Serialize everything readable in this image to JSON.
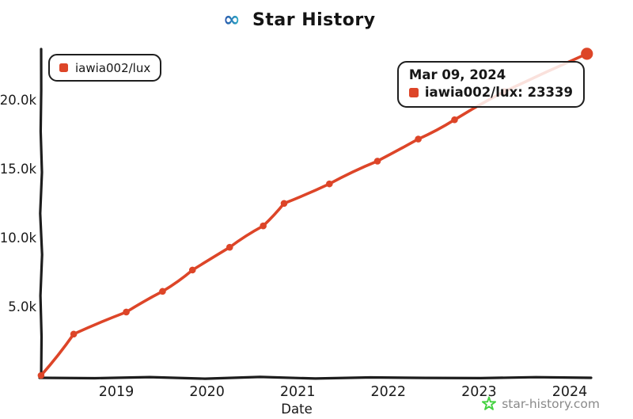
{
  "header": {
    "title": "Star History",
    "logo_icon": "infinity-ribbon-icon",
    "logo_colors": [
      "#274aa8",
      "#2fb6c9"
    ]
  },
  "legend": {
    "label": "iawia002/lux",
    "marker_color": "#dd4528"
  },
  "tooltip": {
    "date": "Mar 09, 2024",
    "label": "iawia002/lux: 23339",
    "marker_color": "#dd4528"
  },
  "watermark": {
    "text": "star-history.com",
    "icon": "star-icon",
    "icon_color": "#43d140",
    "text_color": "#8a8a8a"
  },
  "chart_data": {
    "type": "line",
    "title": "Star History",
    "xlabel": "Date",
    "ylabel": "",
    "grid": false,
    "legend_position": "top-left",
    "axis_color": "#1d1d1d",
    "line_color": "#dd4528",
    "xlim": [
      2018.17,
      2024.35
    ],
    "ylim": [
      0,
      24000
    ],
    "x_ticks": [
      {
        "label": "2019",
        "t": 2019
      },
      {
        "label": "2020",
        "t": 2020
      },
      {
        "label": "2021",
        "t": 2021
      },
      {
        "label": "2022",
        "t": 2022
      },
      {
        "label": "2023",
        "t": 2023
      },
      {
        "label": "2024",
        "t": 2024
      }
    ],
    "y_ticks": [
      {
        "label": "5.0k",
        "stars": 5000
      },
      {
        "label": "10.0k",
        "stars": 10000
      },
      {
        "label": "15.0k",
        "stars": 15000
      },
      {
        "label": "20.0k",
        "stars": 20000
      }
    ],
    "series": [
      {
        "name": "iawia002/lux",
        "color": "#dd4528",
        "points": [
          {
            "date": "Mar 2018",
            "t": 2018.17,
            "stars": 0
          },
          {
            "date": "Jul 2018",
            "t": 2018.53,
            "stars": 3000
          },
          {
            "date": "Feb 2019",
            "t": 2019.11,
            "stars": 4600
          },
          {
            "date": "Jul 2019",
            "t": 2019.51,
            "stars": 6100
          },
          {
            "date": "Nov 2019",
            "t": 2019.84,
            "stars": 7650
          },
          {
            "date": "Apr 2020",
            "t": 2020.25,
            "stars": 9300
          },
          {
            "date": "Aug 2020",
            "t": 2020.62,
            "stars": 10850
          },
          {
            "date": "Nov 2020",
            "t": 2020.85,
            "stars": 12480
          },
          {
            "date": "May 2021",
            "t": 2021.35,
            "stars": 13900
          },
          {
            "date": "Nov 2021",
            "t": 2021.88,
            "stars": 15550
          },
          {
            "date": "May 2022",
            "t": 2022.33,
            "stars": 17150
          },
          {
            "date": "Sep 2022",
            "t": 2022.73,
            "stars": 18550
          },
          {
            "date": "Apr 2023",
            "t": 2023.28,
            "stars": 20600
          },
          {
            "date": "Mar 09, 2024",
            "t": 2024.19,
            "stars": 23339,
            "highlight": true
          }
        ]
      }
    ]
  }
}
